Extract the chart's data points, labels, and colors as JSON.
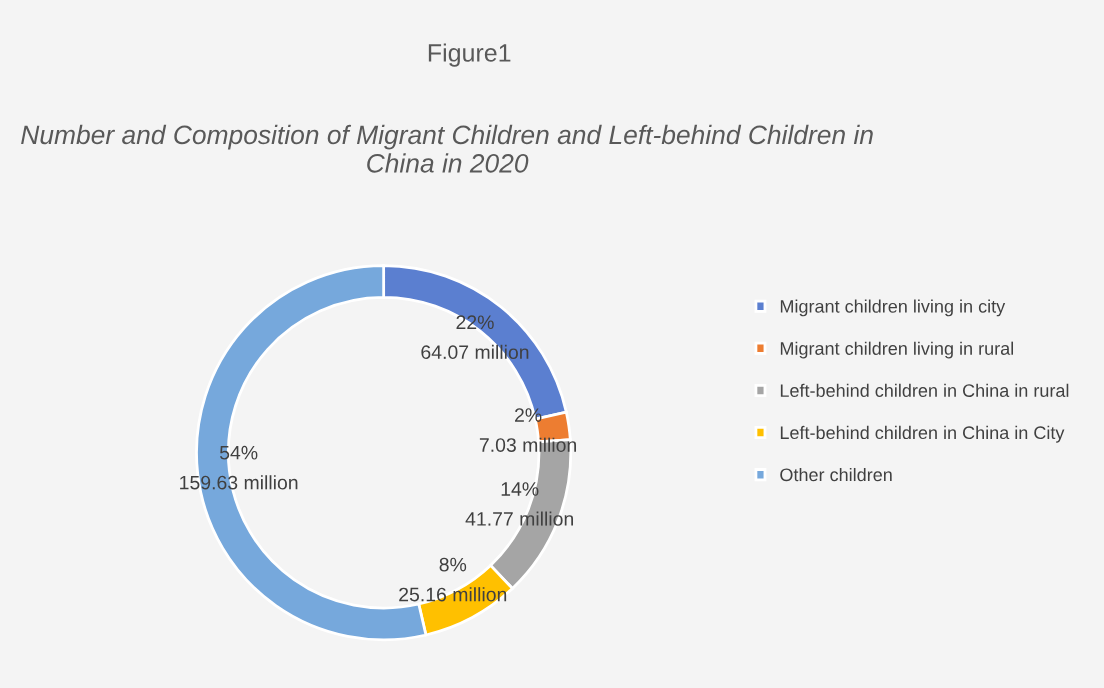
{
  "chart_data": {
    "type": "donut",
    "title": "Figure1",
    "subtitle": "Number and Composition of Migrant Children and Left-behind Children in China in 2020",
    "categories": [
      "Migrant children living in city",
      "Migrant children living in rural",
      "Left-behind children in China in rural",
      "Left-behind children in China in City",
      "Other children"
    ],
    "values": [
      64.07,
      7.03,
      41.77,
      25.16,
      159.63
    ],
    "colors": [
      "#5b7fd0",
      "#ed7d31",
      "#a5a5a5",
      "#ffc000",
      "#76a8dc"
    ],
    "value_labels": [
      "64.07 million",
      "7.03 million",
      "41.77 million",
      "25.16 million",
      "159.63 million"
    ],
    "annotations": [
      "22%",
      "2%",
      "14%",
      "8%",
      "54%"
    ],
    "legend": "right"
  }
}
